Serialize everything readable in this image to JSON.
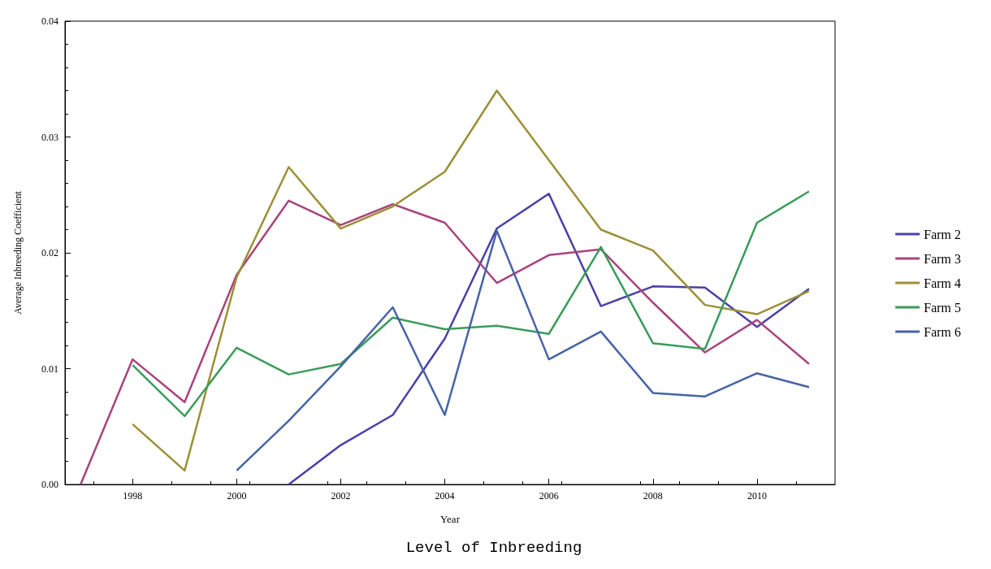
{
  "chart_data": {
    "type": "line",
    "title": "Level of Inbreeding",
    "xlabel": "Year",
    "ylabel": "Average Inbreeding Coefficient",
    "x": [
      1997,
      1998,
      1999,
      2000,
      2001,
      2002,
      2003,
      2004,
      2005,
      2006,
      2007,
      2008,
      2009,
      2010,
      2011
    ],
    "series": [
      {
        "name": "Farm 2",
        "color": "#4a40a8",
        "values": [
          null,
          null,
          null,
          null,
          0,
          0.0034,
          0.006,
          0.0126,
          0.0221,
          0.0251,
          0.0154,
          0.0171,
          0.017,
          0.0136,
          0.0169
        ]
      },
      {
        "name": "Farm 3",
        "color": "#a8437d",
        "values": [
          0,
          0.0108,
          0.0071,
          0.0181,
          0.0245,
          0.0224,
          0.0242,
          0.0226,
          0.0174,
          0.0198,
          0.0203,
          0.0157,
          0.0114,
          0.0142,
          0.0104
        ]
      },
      {
        "name": "Farm 4",
        "color": "#9c9036",
        "values": [
          null,
          0.0052,
          0.0012,
          0.0179,
          0.0274,
          0.0221,
          0.024,
          0.027,
          0.034,
          0.028,
          0.022,
          0.0202,
          0.0155,
          0.0147,
          0.0167
        ]
      },
      {
        "name": "Farm 5",
        "color": "#3a9c5a",
        "values": [
          null,
          0.0103,
          0.0059,
          0.0118,
          0.0095,
          0.0104,
          0.0144,
          0.0134,
          0.0137,
          0.013,
          0.0205,
          0.0122,
          0.0117,
          0.0226,
          0.0253
        ]
      },
      {
        "name": "Farm 6",
        "color": "#4763a6",
        "values": [
          null,
          null,
          null,
          0.0012,
          0.0055,
          0.0102,
          0.0153,
          0.006,
          0.0219,
          0.0108,
          0.0132,
          0.0079,
          0.0076,
          0.0096,
          0.0084
        ]
      }
    ],
    "xlim": [
      1996.7,
      2011.5
    ],
    "xticks": [
      1998,
      2000,
      2002,
      2004,
      2006,
      2008,
      2010
    ],
    "ylim": [
      0,
      0.04
    ],
    "yticks": [
      {
        "value": 0,
        "label": "0.00"
      },
      0.01,
      0.02,
      0.03,
      0.04
    ],
    "grid": false,
    "legend": "right",
    "marker": "none",
    "line_style": "solid"
  }
}
